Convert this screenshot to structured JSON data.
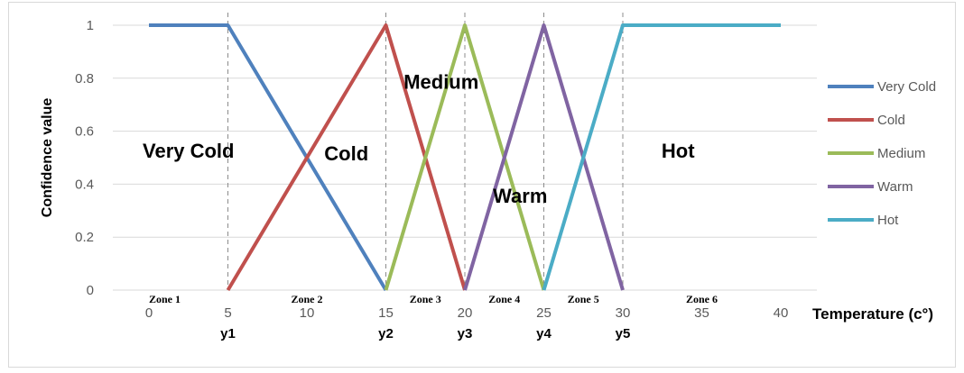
{
  "chart_data": {
    "type": "line",
    "title": "",
    "xlabel": "Temperature (c°)",
    "ylabel": "Confidence value",
    "xlim": [
      0,
      40
    ],
    "ylim": [
      0,
      1
    ],
    "x_ticks": [
      "0",
      "5",
      "10",
      "15",
      "20",
      "25",
      "30",
      "35",
      "40"
    ],
    "y_ticks": [
      "0",
      "0.2",
      "0.4",
      "0.6",
      "0.8",
      "1"
    ],
    "grid": "horizontal",
    "legend_position": "right",
    "series": [
      {
        "name": "Very Cold",
        "color": "#4f81bd",
        "points": [
          [
            0,
            1
          ],
          [
            5,
            1
          ],
          [
            15,
            0
          ]
        ]
      },
      {
        "name": "Cold",
        "color": "#c0504d",
        "points": [
          [
            5,
            0
          ],
          [
            15,
            1
          ],
          [
            20,
            0
          ]
        ]
      },
      {
        "name": "Medium",
        "color": "#9bbb59",
        "points": [
          [
            15,
            0
          ],
          [
            20,
            1
          ],
          [
            25,
            0
          ]
        ]
      },
      {
        "name": "Warm",
        "color": "#8064a2",
        "points": [
          [
            20,
            0
          ],
          [
            25,
            1
          ],
          [
            30,
            0
          ]
        ]
      },
      {
        "name": "Hot",
        "color": "#4bacc6",
        "points": [
          [
            25,
            0
          ],
          [
            30,
            1
          ],
          [
            40,
            1
          ]
        ]
      }
    ],
    "boundaries": [
      {
        "x": 5,
        "label": "y1"
      },
      {
        "x": 15,
        "label": "y2"
      },
      {
        "x": 20,
        "label": "y3"
      },
      {
        "x": 25,
        "label": "y4"
      },
      {
        "x": 30,
        "label": "y5"
      }
    ],
    "zones": [
      {
        "label": "Zone 1",
        "x": 1
      },
      {
        "label": "Zone 2",
        "x": 10
      },
      {
        "label": "Zone 3",
        "x": 17.5
      },
      {
        "label": "Zone 4",
        "x": 22.5
      },
      {
        "label": "Zone 5",
        "x": 27.5
      },
      {
        "label": "Zone 6",
        "x": 35
      }
    ],
    "region_labels": [
      {
        "text": "Very Cold",
        "x": 2.5,
        "y": 0.5
      },
      {
        "text": "Cold",
        "x": 12.5,
        "y": 0.49
      },
      {
        "text": "Medium",
        "x": 18.5,
        "y": 0.76
      },
      {
        "text": "Warm",
        "x": 23.5,
        "y": 0.33
      },
      {
        "text": "Hot",
        "x": 33.5,
        "y": 0.5
      }
    ]
  }
}
